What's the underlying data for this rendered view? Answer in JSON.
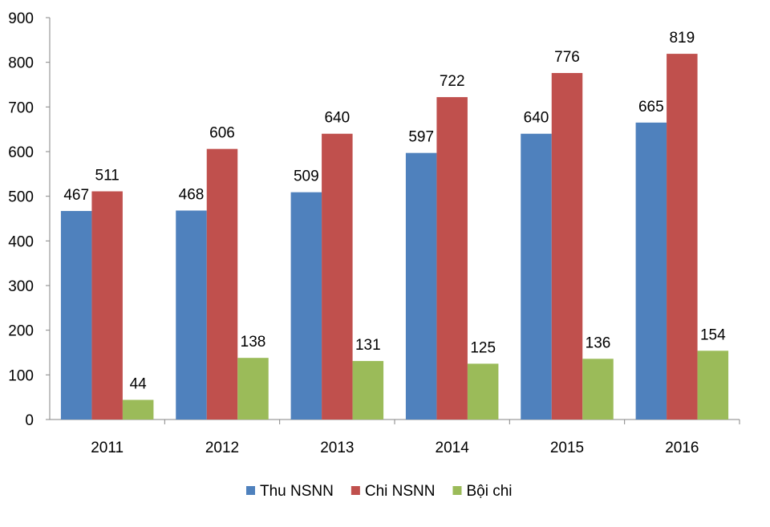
{
  "chart_data": {
    "type": "bar",
    "categories": [
      "2011",
      "2012",
      "2013",
      "2014",
      "2015",
      "2016"
    ],
    "series": [
      {
        "name": "Thu NSNN",
        "color": "#4F81BD",
        "values": [
          467,
          468,
          509,
          597,
          640,
          665
        ]
      },
      {
        "name": "Chi NSNN",
        "color": "#C0504D",
        "values": [
          511,
          606,
          640,
          722,
          776,
          819
        ]
      },
      {
        "name": "Bội chi",
        "color": "#9BBB59",
        "values": [
          44,
          138,
          131,
          125,
          136,
          154
        ]
      }
    ],
    "title": "",
    "xlabel": "",
    "ylabel": "",
    "ylim": [
      0,
      900
    ],
    "yticks": [
      0,
      100,
      200,
      300,
      400,
      500,
      600,
      700,
      800,
      900
    ],
    "grid": false,
    "data_labels": true,
    "legend": "bottom"
  }
}
